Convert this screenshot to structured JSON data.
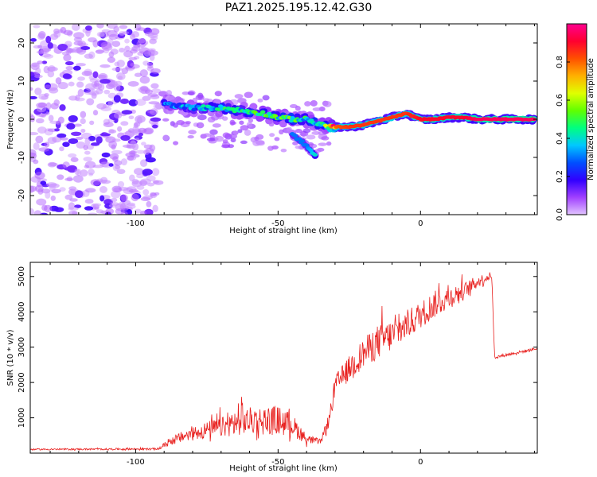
{
  "figure": {
    "title": "PAZ1.2025.195.12.42.G30"
  },
  "colors": {
    "snr_line": "#e8201e",
    "frame": "#000000",
    "background": "#ffffff"
  },
  "chart_data": [
    {
      "type": "heatmap",
      "title": "PAZ1.2025.195.12.42.G30",
      "xlabel": "Height of straight line (km)",
      "ylabel": "Frequency (Hz)",
      "xlim": [
        -137,
        41
      ],
      "ylim": [
        -25,
        25
      ],
      "xticks": [
        -100,
        -50,
        0
      ],
      "yticks": [
        -20,
        -10,
        0,
        10,
        20
      ],
      "colorbar": {
        "label": "Normalized spectral amplitude",
        "range": [
          0,
          1
        ],
        "ticks": [
          "0.0",
          "0.2",
          "0.4",
          "0.6",
          "0.8"
        ],
        "colormap": [
          "#e2c4ff",
          "#a040ff",
          "#3000ff",
          "#0050ff",
          "#00c8ff",
          "#00ff80",
          "#60ff00",
          "#e0ff00",
          "#ffb000",
          "#ff5000",
          "#ff0030",
          "#ff0090"
        ]
      },
      "ridge": [
        {
          "x": -90,
          "y": 4,
          "a": 0.3
        },
        {
          "x": -85,
          "y": 3.5,
          "a": 0.3
        },
        {
          "x": -80,
          "y": 3,
          "a": 0.35
        },
        {
          "x": -75,
          "y": 3,
          "a": 0.35
        },
        {
          "x": -70,
          "y": 3,
          "a": 0.4
        },
        {
          "x": -65,
          "y": 2.5,
          "a": 0.4
        },
        {
          "x": -60,
          "y": 2,
          "a": 0.4
        },
        {
          "x": -55,
          "y": 1.5,
          "a": 0.45
        },
        {
          "x": -50,
          "y": 0.5,
          "a": 0.45
        },
        {
          "x": -45,
          "y": 0,
          "a": 0.45
        },
        {
          "x": -40,
          "y": 0,
          "a": 0.4
        },
        {
          "x": -35,
          "y": -1.5,
          "a": 0.45
        },
        {
          "x": -30,
          "y": -2,
          "a": 0.8
        },
        {
          "x": -25,
          "y": -2,
          "a": 0.85
        },
        {
          "x": -20,
          "y": -1.5,
          "a": 0.85
        },
        {
          "x": -15,
          "y": -0.5,
          "a": 0.85
        },
        {
          "x": -10,
          "y": 0.5,
          "a": 0.85
        },
        {
          "x": -5,
          "y": 1.5,
          "a": 0.85
        },
        {
          "x": 0,
          "y": 0,
          "a": 0.9
        },
        {
          "x": 5,
          "y": 0,
          "a": 0.9
        },
        {
          "x": 10,
          "y": 0.5,
          "a": 0.9
        },
        {
          "x": 15,
          "y": 0.5,
          "a": 0.9
        },
        {
          "x": 20,
          "y": 0,
          "a": 0.95
        },
        {
          "x": 25,
          "y": 0,
          "a": 0.95
        },
        {
          "x": 30,
          "y": 0,
          "a": 0.95
        },
        {
          "x": 35,
          "y": 0,
          "a": 0.95
        },
        {
          "x": 40,
          "y": 0,
          "a": 0.95
        }
      ],
      "branch": [
        {
          "x": -45,
          "y": -4,
          "a": 0.3
        },
        {
          "x": -40,
          "y": -7,
          "a": 0.3
        },
        {
          "x": -37,
          "y": -9.5,
          "a": 0.4
        }
      ],
      "noise_region": {
        "x": [
          -137,
          -92
        ],
        "y": [
          -25,
          25
        ],
        "level": 0.15
      }
    },
    {
      "type": "line",
      "xlabel": "Height of straight line (km)",
      "ylabel": "SNR (10 * v/v)",
      "xlim": [
        -137,
        41
      ],
      "ylim": [
        0,
        5400
      ],
      "xticks": [
        -100,
        -50,
        0
      ],
      "yticks": [
        1000,
        2000,
        3000,
        4000,
        5000
      ],
      "series": [
        {
          "envelope": [
            {
              "x": -137,
              "base": 100,
              "amp": 60
            },
            {
              "x": -92,
              "base": 110,
              "amp": 80
            },
            {
              "x": -88,
              "base": 300,
              "amp": 300
            },
            {
              "x": -80,
              "base": 500,
              "amp": 600
            },
            {
              "x": -70,
              "base": 650,
              "amp": 800
            },
            {
              "x": -60,
              "base": 800,
              "amp": 1100
            },
            {
              "x": -50,
              "base": 800,
              "amp": 1200
            },
            {
              "x": -45,
              "base": 700,
              "amp": 900
            },
            {
              "x": -40,
              "base": 350,
              "amp": 400
            },
            {
              "x": -35,
              "base": 300,
              "amp": 200
            },
            {
              "x": -32,
              "base": 900,
              "amp": 600
            },
            {
              "x": -30,
              "base": 1800,
              "amp": 900
            },
            {
              "x": -25,
              "base": 2300,
              "amp": 1000
            },
            {
              "x": -20,
              "base": 2700,
              "amp": 1200
            },
            {
              "x": -15,
              "base": 3000,
              "amp": 1400
            },
            {
              "x": -10,
              "base": 3200,
              "amp": 1300
            },
            {
              "x": -5,
              "base": 3500,
              "amp": 1200
            },
            {
              "x": 0,
              "base": 3800,
              "amp": 1100
            },
            {
              "x": 5,
              "base": 4100,
              "amp": 1100
            },
            {
              "x": 10,
              "base": 4300,
              "amp": 900
            },
            {
              "x": 15,
              "base": 4500,
              "amp": 700
            },
            {
              "x": 20,
              "base": 4800,
              "amp": 500
            },
            {
              "x": 25,
              "base": 5000,
              "amp": 300
            },
            {
              "x": 26,
              "base": 2700,
              "amp": 120
            },
            {
              "x": 35,
              "base": 2850,
              "amp": 120
            },
            {
              "x": 41,
              "base": 2950,
              "amp": 110
            }
          ]
        }
      ]
    }
  ]
}
